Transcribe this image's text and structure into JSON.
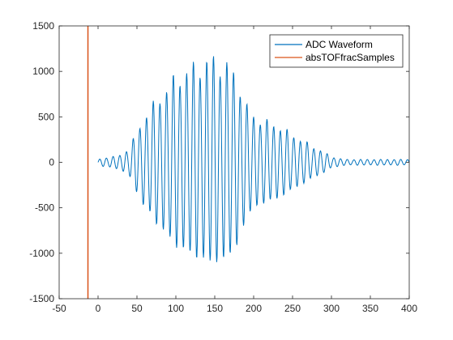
{
  "chart_data": {
    "type": "line",
    "xlim": [
      -50,
      400
    ],
    "ylim": [
      -1500,
      1500
    ],
    "xticks": [
      -50,
      0,
      50,
      100,
      150,
      200,
      250,
      300,
      350,
      400
    ],
    "yticks": [
      -1500,
      -1000,
      -500,
      0,
      500,
      1000,
      1500
    ],
    "xtick_labels": [
      "-50",
      "0",
      "50",
      "100",
      "150",
      "200",
      "250",
      "300",
      "350",
      "400"
    ],
    "ytick_labels": [
      "-1500",
      "-1000",
      "-500",
      "0",
      "500",
      "1000",
      "1500"
    ],
    "grid": false,
    "legend_position": "top-right",
    "series": [
      {
        "name": "ADC Waveform",
        "color": "#0072BD",
        "envelope": {
          "x": [
            0,
            10,
            20,
            30,
            40,
            50,
            60,
            70,
            80,
            90,
            100,
            110,
            120,
            130,
            140,
            150,
            160,
            170,
            180,
            190,
            200,
            210,
            220,
            230,
            240,
            250,
            260,
            270,
            280,
            290,
            300,
            310,
            320,
            330,
            340,
            350,
            360,
            370,
            380,
            390,
            400
          ],
          "amplitude": [
            30,
            50,
            60,
            80,
            150,
            320,
            500,
            600,
            700,
            820,
            900,
            960,
            1000,
            1050,
            1070,
            1100,
            1060,
            1000,
            900,
            600,
            500,
            450,
            420,
            400,
            340,
            300,
            240,
            200,
            150,
            110,
            60,
            40,
            30,
            30,
            30,
            30,
            30,
            30,
            30,
            30,
            30
          ]
        },
        "period": 8.6
      },
      {
        "name": "absTOFfracSamples",
        "color": "#D95319",
        "x": [
          -13,
          -13
        ],
        "y": [
          -1500,
          1500
        ]
      }
    ]
  }
}
